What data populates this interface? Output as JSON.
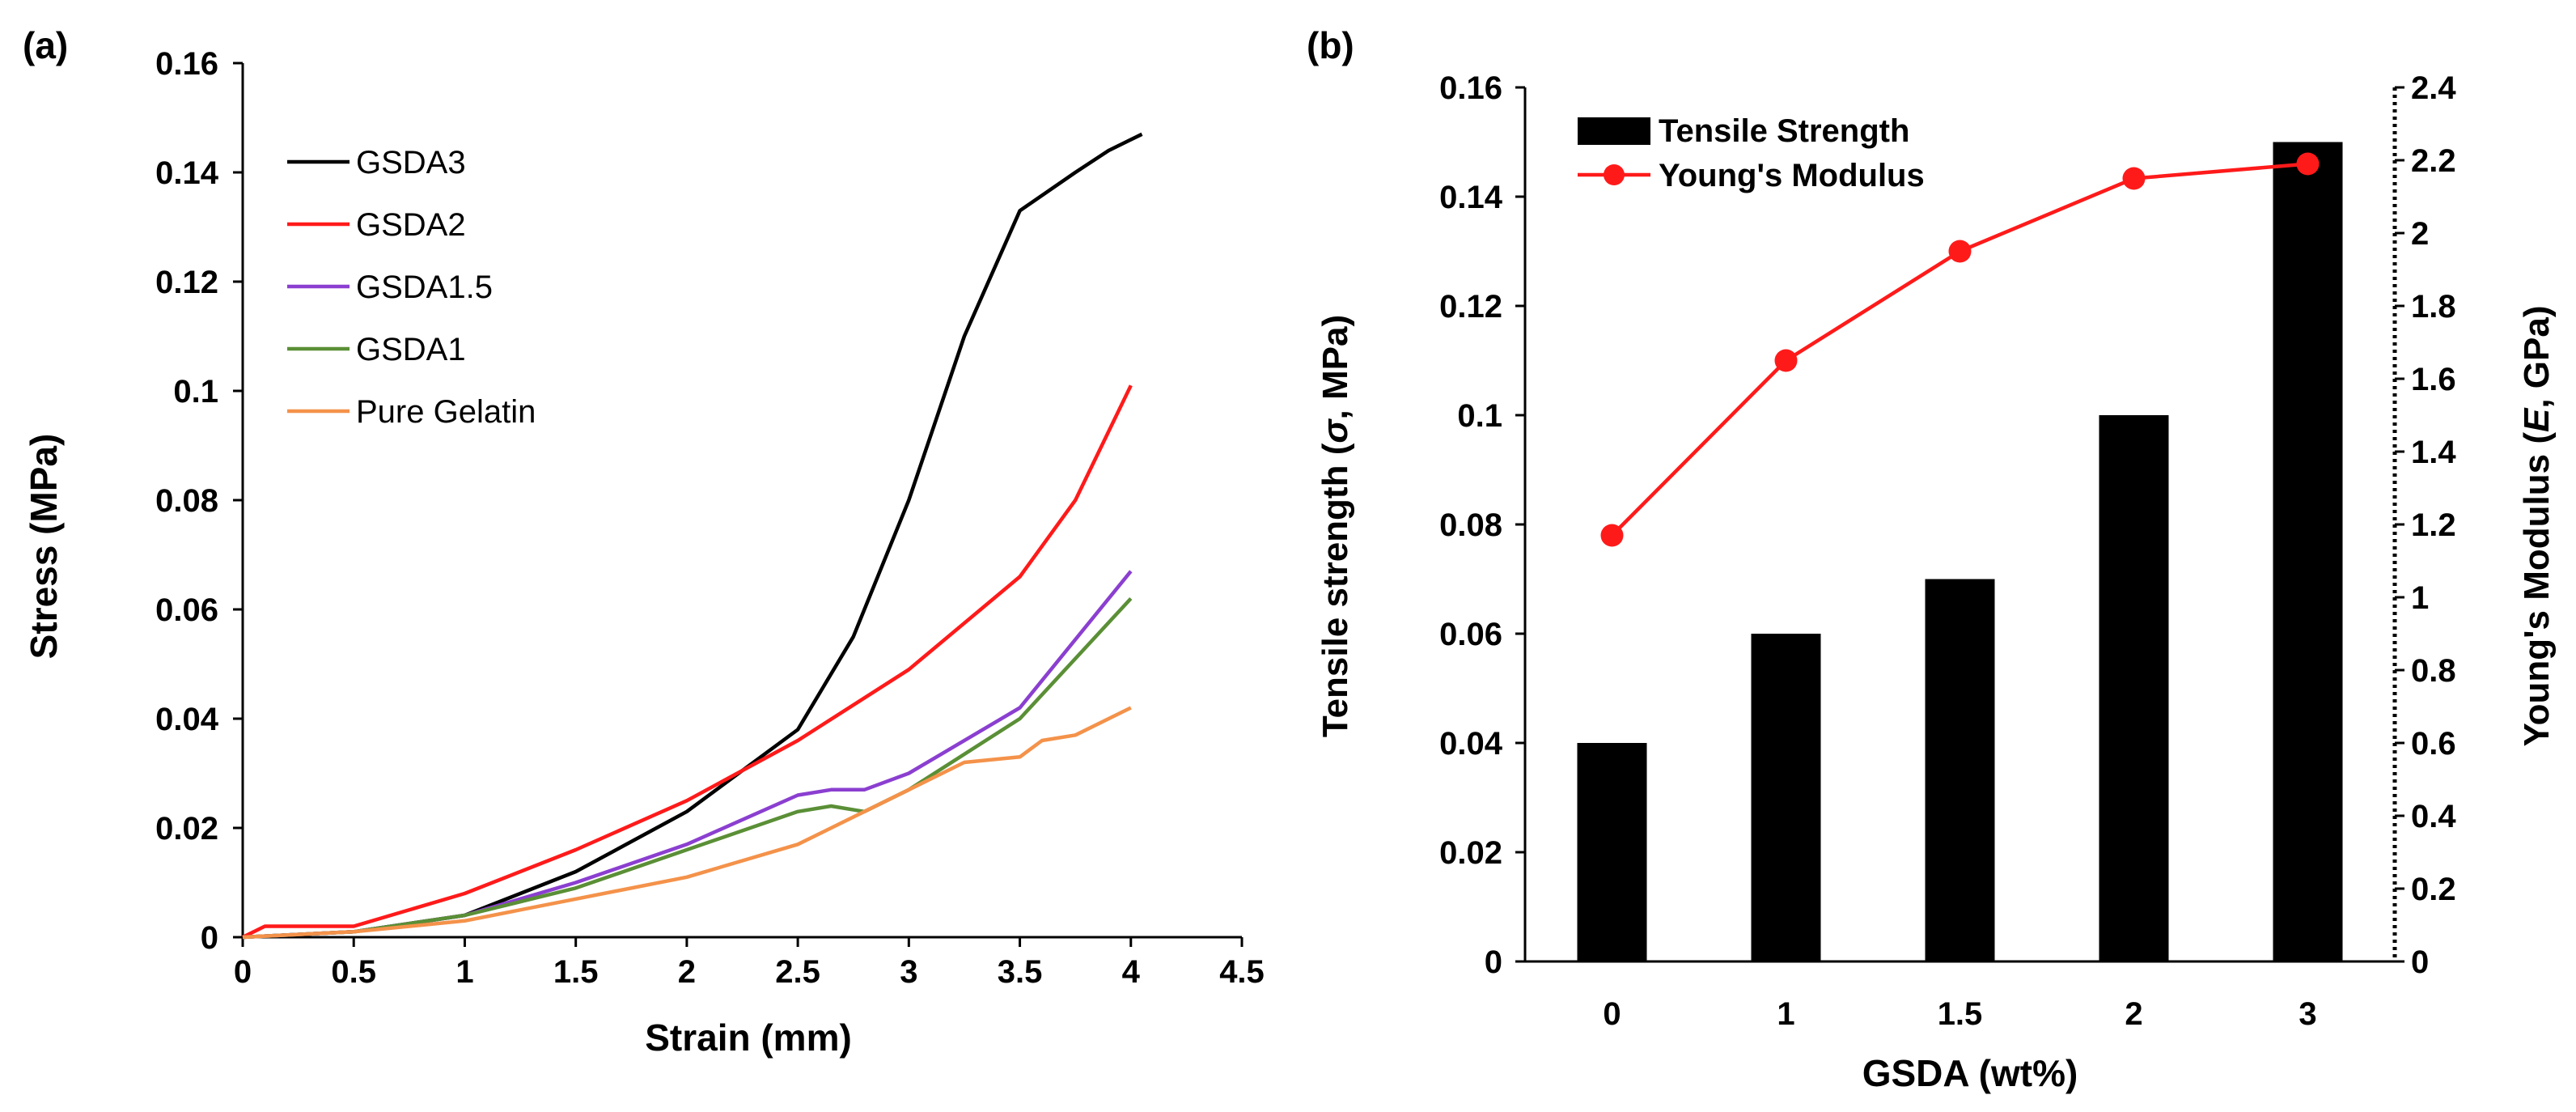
{
  "colors": {
    "GSDA3": "#000000",
    "GSDA2": "#ff1a1a",
    "GSDA1.5": "#8b3fd0",
    "GSDA1": "#5a8f36",
    "Pure Gelatin": "#f4924a",
    "bar": "#000000",
    "modulus": "#ff1a1a"
  },
  "chart_data": [
    {
      "panel_label": "(a)",
      "type": "line",
      "xlabel": "Strain (mm)",
      "ylabel": "Stress (MPa)",
      "xlim": [
        0,
        4.5
      ],
      "ylim": [
        0,
        0.16
      ],
      "xticks": [
        "0",
        "0.5",
        "1",
        "1.5",
        "2",
        "2.5",
        "3",
        "3.5",
        "4",
        "4.5"
      ],
      "yticks": [
        "0",
        "0.02",
        "0.04",
        "0.06",
        "0.08",
        "0.1",
        "0.12",
        "0.14",
        "0.16"
      ],
      "legend_position": "top-left",
      "series": [
        {
          "name": "GSDA3",
          "x": [
            0,
            0.5,
            1,
            1.5,
            2,
            2.5,
            2.75,
            3,
            3.25,
            3.5,
            3.75,
            3.9,
            4.05
          ],
          "y": [
            0,
            0.001,
            0.004,
            0.012,
            0.023,
            0.038,
            0.055,
            0.08,
            0.11,
            0.133,
            0.14,
            0.144,
            0.147
          ]
        },
        {
          "name": "GSDA2",
          "x": [
            0,
            0.1,
            0.5,
            1,
            1.5,
            2,
            2.5,
            3,
            3.5,
            3.75,
            4
          ],
          "y": [
            0,
            0.002,
            0.002,
            0.008,
            0.016,
            0.025,
            0.036,
            0.049,
            0.066,
            0.08,
            0.101
          ]
        },
        {
          "name": "GSDA1.5",
          "x": [
            0,
            0.5,
            1,
            1.5,
            2,
            2.5,
            2.65,
            2.8,
            3,
            3.5,
            4
          ],
          "y": [
            0,
            0.001,
            0.004,
            0.01,
            0.017,
            0.026,
            0.027,
            0.027,
            0.03,
            0.042,
            0.067
          ]
        },
        {
          "name": "GSDA1",
          "x": [
            0,
            0.5,
            1,
            1.5,
            2,
            2.5,
            2.65,
            2.8,
            3,
            3.5,
            4
          ],
          "y": [
            0,
            0.001,
            0.004,
            0.009,
            0.016,
            0.023,
            0.024,
            0.023,
            0.027,
            0.04,
            0.062
          ]
        },
        {
          "name": "Pure Gelatin",
          "x": [
            0,
            0.5,
            1,
            1.5,
            2,
            2.5,
            3,
            3.25,
            3.5,
            3.6,
            3.75,
            4
          ],
          "y": [
            0,
            0.001,
            0.003,
            0.007,
            0.011,
            0.017,
            0.027,
            0.032,
            0.033,
            0.036,
            0.037,
            0.042
          ]
        }
      ]
    },
    {
      "panel_label": "(b)",
      "type": "bar",
      "xlabel": "GSDA (wt%)",
      "ylabel": "Tensile strength (σ, MPa)",
      "y2label": "Young's Modulus (E, GPa)",
      "categories": [
        "0",
        "1",
        "1.5",
        "2",
        "3"
      ],
      "ylim": [
        0,
        0.16
      ],
      "y2lim": [
        0,
        2.4
      ],
      "yticks": [
        "0",
        "0.02",
        "0.04",
        "0.06",
        "0.08",
        "0.1",
        "0.12",
        "0.14",
        "0.16"
      ],
      "y2ticks": [
        "0",
        "0.2",
        "0.4",
        "0.6",
        "0.8",
        "1",
        "1.2",
        "1.4",
        "1.6",
        "1.8",
        "2",
        "2.2",
        "2.4"
      ],
      "legend_position": "top-left",
      "series": [
        {
          "name": "Tensile Strength",
          "type": "bar",
          "axis": "left",
          "values": [
            0.04,
            0.06,
            0.07,
            0.1,
            0.15
          ]
        },
        {
          "name": "Young's Modulus",
          "type": "line",
          "axis": "right",
          "values": [
            1.17,
            1.65,
            1.95,
            2.15,
            2.19
          ]
        }
      ]
    }
  ]
}
